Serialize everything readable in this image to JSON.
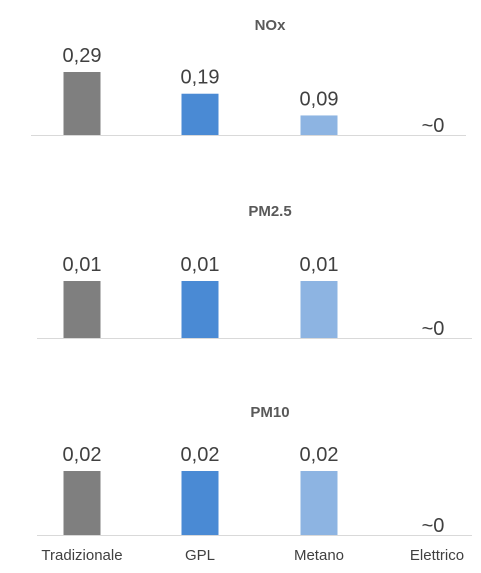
{
  "chart_data": [
    {
      "type": "bar",
      "title": "NOx",
      "categories": [
        "Tradizionale",
        "GPL",
        "Metano",
        "Elettrico"
      ],
      "values": [
        0.29,
        0.19,
        0.09,
        0
      ],
      "value_labels": [
        "0,29",
        "0,19",
        "0,09",
        "~0"
      ],
      "colors": [
        "#7f7f7f",
        "#4a8ad4",
        "#8db4e2",
        "#ffffff"
      ],
      "ylim": [
        0,
        0.29
      ],
      "grid": false,
      "legend": "none"
    },
    {
      "type": "bar",
      "title": "PM2.5",
      "categories": [
        "Tradizionale",
        "GPL",
        "Metano",
        "Elettrico"
      ],
      "values": [
        0.01,
        0.01,
        0.01,
        0
      ],
      "value_labels": [
        "0,01",
        "0,01",
        "0,01",
        "~0"
      ],
      "colors": [
        "#7f7f7f",
        "#4a8ad4",
        "#8db4e2",
        "#ffffff"
      ],
      "ylim": [
        0,
        0.01
      ],
      "grid": false,
      "legend": "none"
    },
    {
      "type": "bar",
      "title": "PM10",
      "categories": [
        "Tradizionale",
        "GPL",
        "Metano",
        "Elettrico"
      ],
      "values": [
        0.02,
        0.02,
        0.02,
        0
      ],
      "value_labels": [
        "0,02",
        "0,02",
        "0,02",
        "~0"
      ],
      "colors": [
        "#7f7f7f",
        "#4a8ad4",
        "#8db4e2",
        "#ffffff"
      ],
      "ylim": [
        0,
        0.02
      ],
      "grid": false,
      "legend": "none"
    }
  ],
  "x_axis": {
    "labels": [
      "Tradizionale",
      "GPL",
      "Metano",
      "Elettrico"
    ]
  }
}
